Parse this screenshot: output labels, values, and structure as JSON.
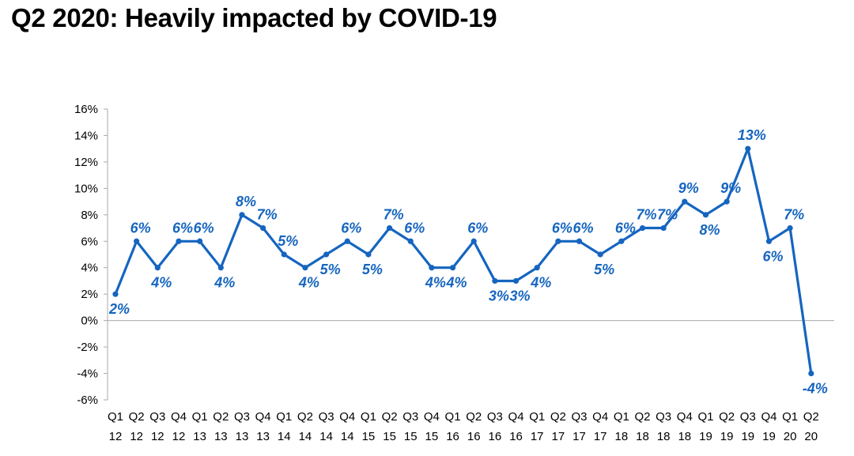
{
  "title": "Q2 2020: Heavily impacted by COVID-19",
  "colors": {
    "line": "#1565C0",
    "axis": "#AAAAAA",
    "text": "#000000"
  },
  "chart_data": {
    "type": "line",
    "title": "Q2 2020: Heavily impacted by COVID-19",
    "xlabel": "",
    "ylabel": "",
    "ylim": [
      -6,
      16
    ],
    "ytick_step": 2,
    "ytick_labels": [
      "-6%",
      "-4%",
      "-2%",
      "0%",
      "2%",
      "4%",
      "6%",
      "8%",
      "10%",
      "12%",
      "14%",
      "16%"
    ],
    "grid": false,
    "categories": [
      [
        "Q1",
        "12"
      ],
      [
        "Q2",
        "12"
      ],
      [
        "Q3",
        "12"
      ],
      [
        "Q4",
        "12"
      ],
      [
        "Q1",
        "13"
      ],
      [
        "Q2",
        "13"
      ],
      [
        "Q3",
        "13"
      ],
      [
        "Q4",
        "13"
      ],
      [
        "Q1",
        "14"
      ],
      [
        "Q2",
        "14"
      ],
      [
        "Q3",
        "14"
      ],
      [
        "Q4",
        "14"
      ],
      [
        "Q1",
        "15"
      ],
      [
        "Q2",
        "15"
      ],
      [
        "Q3",
        "15"
      ],
      [
        "Q4",
        "15"
      ],
      [
        "Q1",
        "16"
      ],
      [
        "Q2",
        "16"
      ],
      [
        "Q3",
        "16"
      ],
      [
        "Q4",
        "16"
      ],
      [
        "Q1",
        "17"
      ],
      [
        "Q2",
        "17"
      ],
      [
        "Q3",
        "17"
      ],
      [
        "Q4",
        "17"
      ],
      [
        "Q1",
        "18"
      ],
      [
        "Q2",
        "18"
      ],
      [
        "Q3",
        "18"
      ],
      [
        "Q4",
        "18"
      ],
      [
        "Q1",
        "19"
      ],
      [
        "Q2",
        "19"
      ],
      [
        "Q3",
        "19"
      ],
      [
        "Q4",
        "19"
      ],
      [
        "Q1",
        "20"
      ],
      [
        "Q2",
        "20"
      ]
    ],
    "values": [
      2,
      6,
      4,
      6,
      6,
      4,
      8,
      7,
      5,
      4,
      5,
      6,
      5,
      7,
      6,
      4,
      4,
      6,
      3,
      3,
      4,
      6,
      6,
      5,
      6,
      7,
      7,
      9,
      8,
      9,
      13,
      6,
      7,
      -4
    ],
    "labels": [
      "2%",
      "6%",
      "4%",
      "6%",
      "6%",
      "4%",
      "8%",
      "7%",
      "5%",
      "4%",
      "5%",
      "6%",
      "5%",
      "7%",
      "6%",
      "4%",
      "4%",
      "6%",
      "3%",
      "3%",
      "4%",
      "6%",
      "6%",
      "5%",
      "6%",
      "7%",
      "7%",
      "9%",
      "8%",
      "9%",
      "13%",
      "6%",
      "7%",
      "-4%"
    ],
    "label_side": [
      "below",
      "above",
      "below",
      "above",
      "above",
      "below",
      "above",
      "above",
      "above",
      "below",
      "below",
      "above",
      "below",
      "above",
      "above",
      "below",
      "below",
      "above",
      "below",
      "below",
      "below",
      "above",
      "above",
      "below",
      "above",
      "above",
      "above",
      "above",
      "below",
      "above",
      "above",
      "below",
      "above",
      "below"
    ]
  }
}
